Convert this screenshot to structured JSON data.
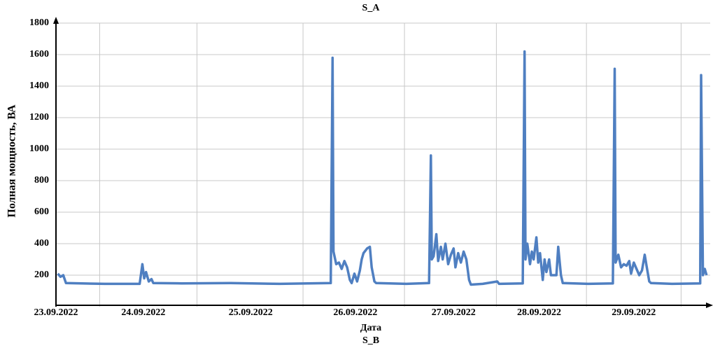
{
  "chart_data": {
    "type": "line",
    "title": "S_A",
    "subtitle": "S_B",
    "x_label": "Дата",
    "y_label": "Полная мощность, ВА",
    "x": [
      0.02,
      0.05,
      0.08,
      0.11,
      0.54,
      0.92,
      0.95,
      0.97,
      0.99,
      1.02,
      1.05,
      1.07,
      1.38,
      1.92,
      2.46,
      3.02,
      3.04,
      3.05,
      3.08,
      3.11,
      3.14,
      3.17,
      3.2,
      3.23,
      3.25,
      3.28,
      3.31,
      3.34,
      3.36,
      3.38,
      3.42,
      3.45,
      3.47,
      3.5,
      3.52,
      3.85,
      4.1,
      4.12,
      4.13,
      4.15,
      4.18,
      4.2,
      4.23,
      4.25,
      4.28,
      4.31,
      4.34,
      4.37,
      4.39,
      4.42,
      4.45,
      4.48,
      4.51,
      4.54,
      4.56,
      4.69,
      4.85,
      4.87,
      5.13,
      5.15,
      5.16,
      5.18,
      5.21,
      5.23,
      5.25,
      5.28,
      5.3,
      5.32,
      5.35,
      5.37,
      5.39,
      5.42,
      5.44,
      5.47,
      5.5,
      5.52,
      5.55,
      5.57,
      5.85,
      6.12,
      6.14,
      6.15,
      6.18,
      6.21,
      6.24,
      6.27,
      6.3,
      6.32,
      6.35,
      6.38,
      6.41,
      6.44,
      6.47,
      6.49,
      6.52,
      6.54,
      6.77,
      7.08,
      7.09,
      7.11,
      7.13,
      7.15
    ],
    "series": [
      {
        "color": "#4f7fc1",
        "values": [
          210,
          190,
          200,
          150,
          145,
          145,
          270,
          180,
          220,
          160,
          175,
          150,
          148,
          150,
          145,
          150,
          1580,
          350,
          270,
          280,
          240,
          290,
          250,
          170,
          150,
          210,
          160,
          230,
          300,
          340,
          370,
          380,
          250,
          160,
          150,
          145,
          150,
          960,
          300,
          320,
          460,
          290,
          380,
          300,
          400,
          270,
          330,
          370,
          250,
          340,
          280,
          350,
          300,
          170,
          140,
          145,
          160,
          145,
          148,
          1620,
          300,
          400,
          270,
          350,
          300,
          440,
          280,
          340,
          170,
          300,
          220,
          300,
          200,
          200,
          200,
          380,
          200,
          150,
          145,
          148,
          1510,
          280,
          330,
          250,
          270,
          260,
          290,
          210,
          280,
          240,
          200,
          230,
          330,
          260,
          160,
          150,
          145,
          148,
          1470,
          200,
          240,
          200
        ]
      }
    ],
    "xlim": [
      0,
      7.19
    ],
    "xticks": [
      {
        "value": 0,
        "label": "23.09.2022"
      },
      {
        "value": 0.96,
        "label": "24.09.2022"
      },
      {
        "value": 2.14,
        "label": "25.09.2022"
      },
      {
        "value": 3.29,
        "label": "26.09.2022"
      },
      {
        "value": 4.37,
        "label": "27.09.2022"
      },
      {
        "value": 5.31,
        "label": "28.09.2022"
      },
      {
        "value": 6.35,
        "label": "29.09.2022"
      }
    ],
    "ylim": [
      0,
      1800
    ],
    "yticks": [
      200,
      400,
      600,
      800,
      1000,
      1200,
      1400,
      1600,
      1800
    ],
    "grid": true
  }
}
